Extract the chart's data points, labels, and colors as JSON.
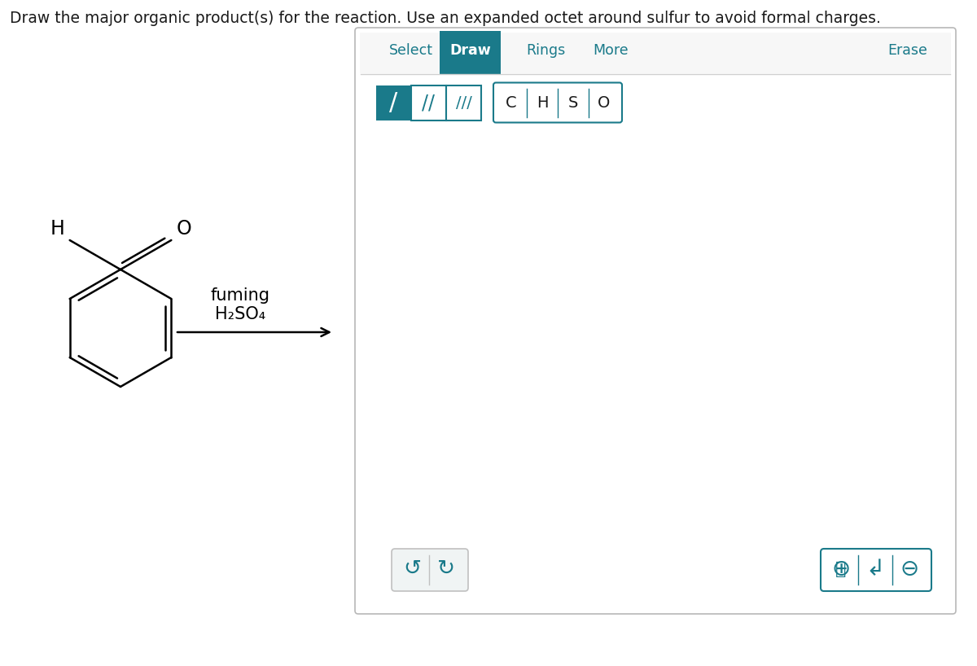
{
  "title_text": "Draw the major organic product(s) for the reaction. Use an expanded octet around sulfur to avoid formal charges.",
  "title_fontsize": 13.5,
  "bg_color": "#ffffff",
  "teal_color": "#1a7a8a",
  "light_teal_bg": "#e8f4f6",
  "panel_border": "#c8c8c8",
  "btn_border": "#c0c0c0",
  "atom_labels": [
    "C",
    "H",
    "S",
    "O"
  ],
  "fuming_text": "fuming",
  "reagent_text": "H₂SO₄"
}
